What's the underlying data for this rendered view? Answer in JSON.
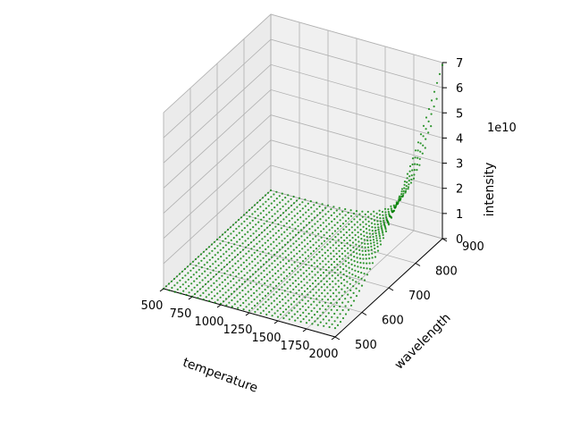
{
  "chart_data": {
    "type": "scatter",
    "projection": "3d",
    "title": "",
    "xlabel": "temperature",
    "ylabel": "wavelength",
    "zlabel": "intensity",
    "z_offset_label": "1e10",
    "xlim": [
      500,
      2000
    ],
    "ylim": [
      500,
      900
    ],
    "zlim": [
      0,
      7
    ],
    "x_ticks": [
      500,
      750,
      1000,
      1250,
      1500,
      1750,
      2000
    ],
    "y_ticks": [
      500,
      600,
      700,
      800,
      900
    ],
    "z_ticks": [
      0,
      1,
      2,
      3,
      4,
      5,
      6,
      7
    ],
    "grid": true,
    "series": [
      {
        "name": "intensity",
        "color": "#008000",
        "marker": "o",
        "x_range": [
          500,
          2000
        ],
        "x_step": 50,
        "y_range": [
          500,
          900
        ],
        "y_step": 10,
        "z_formula": "intensity grows with temperature; peak ~7e10 at temperature 2000, wavelength 900",
        "z_at_corners": {
          "t500_w500": 0.0,
          "t2000_w500": 0.4,
          "t500_w900": 0.0,
          "t2000_w900": 6.9
        }
      }
    ]
  },
  "colors": {
    "points": "#008000",
    "pane": "#f2f2f2",
    "pane_side": "#ebebeb",
    "grid": "#b0b0b0"
  }
}
